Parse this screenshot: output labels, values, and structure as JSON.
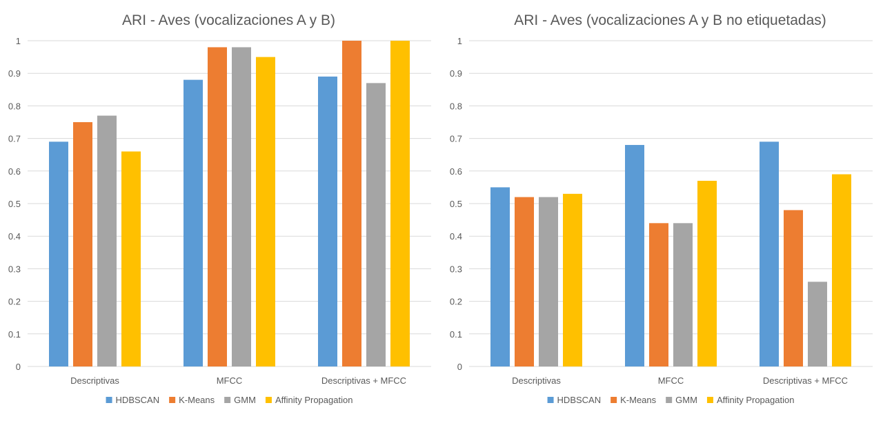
{
  "colors": {
    "HDBSCAN": "#5B9BD5",
    "K-Means": "#ED7D31",
    "GMM": "#A5A5A5",
    "Affinity Propagation": "#FFC000",
    "gridline": "#D9D9D9",
    "text": "#595959"
  },
  "chart_data": [
    {
      "type": "bar",
      "title": "ARI - Aves (vocalizaciones A y B)",
      "xlabel": "",
      "ylabel": "",
      "ylim": [
        0,
        1
      ],
      "yticks": [
        "0",
        "0.1",
        "0.2",
        "0.3",
        "0.4",
        "0.5",
        "0.6",
        "0.7",
        "0.8",
        "0.9",
        "1"
      ],
      "grid": true,
      "legend_position": "bottom",
      "categories": [
        "Descriptivas",
        "MFCC",
        "Descriptivas + MFCC"
      ],
      "series": [
        {
          "name": "HDBSCAN",
          "values": [
            0.69,
            0.88,
            0.89
          ]
        },
        {
          "name": "K-Means",
          "values": [
            0.75,
            0.98,
            1.0
          ]
        },
        {
          "name": "GMM",
          "values": [
            0.77,
            0.98,
            0.87
          ]
        },
        {
          "name": "Affinity Propagation",
          "values": [
            0.66,
            0.95,
            1.0
          ]
        }
      ]
    },
    {
      "type": "bar",
      "title": "ARI - Aves (vocalizaciones A y B no etiquetadas)",
      "xlabel": "",
      "ylabel": "",
      "ylim": [
        0,
        1
      ],
      "yticks": [
        "0",
        "0.1",
        "0.2",
        "0.3",
        "0.4",
        "0.5",
        "0.6",
        "0.7",
        "0.8",
        "0.9",
        "1"
      ],
      "grid": true,
      "legend_position": "bottom",
      "categories": [
        "Descriptivas",
        "MFCC",
        "Descriptivas + MFCC"
      ],
      "series": [
        {
          "name": "HDBSCAN",
          "values": [
            0.55,
            0.68,
            0.69
          ]
        },
        {
          "name": "K-Means",
          "values": [
            0.52,
            0.44,
            0.48
          ]
        },
        {
          "name": "GMM",
          "values": [
            0.52,
            0.44,
            0.26
          ]
        },
        {
          "name": "Affinity Propagation",
          "values": [
            0.53,
            0.57,
            0.59
          ]
        }
      ]
    }
  ]
}
